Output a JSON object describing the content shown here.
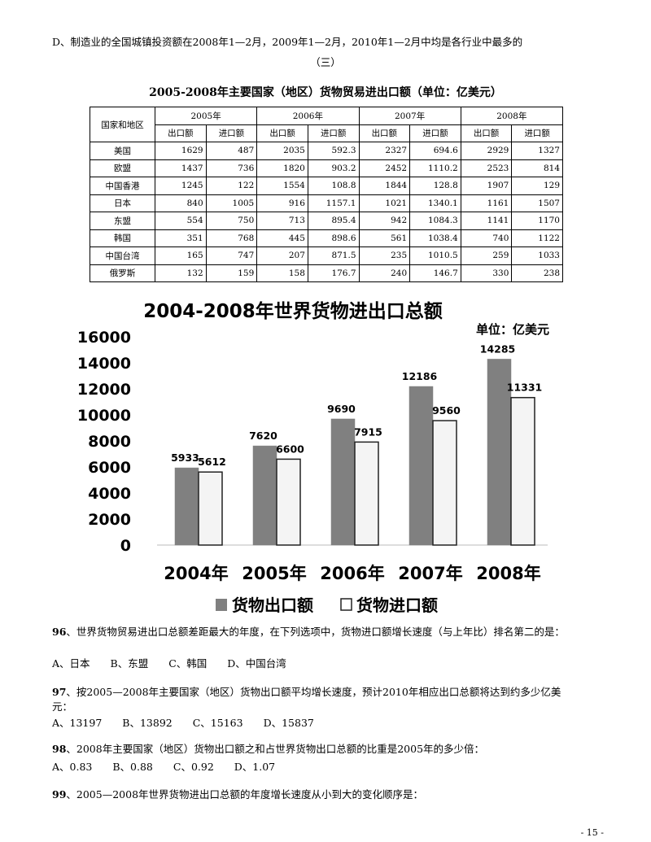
{
  "intro_line": "D、制造业的全国城镇投资额在2008年1—2月，2009年1—2月，2010年1—2月中均是各行业中最多的",
  "section_label": "（三）",
  "table": {
    "title": "2005-2008年主要国家（地区）货物贸易进出口额（单位：亿美元）",
    "corner_header": "国家和地区",
    "years": [
      "2005年",
      "2006年",
      "2007年",
      "2008年"
    ],
    "sub_headers": [
      "出口额",
      "进口额"
    ],
    "rows": [
      {
        "name": "美国",
        "values": [
          "1629",
          "487",
          "2035",
          "592.3",
          "2327",
          "694.6",
          "2929",
          "1327"
        ]
      },
      {
        "name": "欧盟",
        "values": [
          "1437",
          "736",
          "1820",
          "903.2",
          "2452",
          "1110.2",
          "2523",
          "814"
        ]
      },
      {
        "name": "中国香港",
        "values": [
          "1245",
          "122",
          "1554",
          "108.8",
          "1844",
          "128.8",
          "1907",
          "129"
        ]
      },
      {
        "name": "日本",
        "values": [
          "840",
          "1005",
          "916",
          "1157.1",
          "1021",
          "1340.1",
          "1161",
          "1507"
        ]
      },
      {
        "name": "东盟",
        "values": [
          "554",
          "750",
          "713",
          "895.4",
          "942",
          "1084.3",
          "1141",
          "1170"
        ]
      },
      {
        "name": "韩国",
        "values": [
          "351",
          "768",
          "445",
          "898.6",
          "561",
          "1038.4",
          "740",
          "1122"
        ]
      },
      {
        "name": "中国台湾",
        "values": [
          "165",
          "747",
          "207",
          "871.5",
          "235",
          "1010.5",
          "259",
          "1033"
        ]
      },
      {
        "name": "俄罗斯",
        "values": [
          "132",
          "159",
          "158",
          "176.7",
          "240",
          "146.7",
          "330",
          "238"
        ]
      }
    ]
  },
  "chart_data": {
    "type": "bar",
    "title": "2004-2008年世界货物进出口总额",
    "unit_note": "单位：亿美元",
    "categories": [
      "2004年",
      "2005年",
      "2006年",
      "2007年",
      "2008年"
    ],
    "series": [
      {
        "name": "货物出口额",
        "values": [
          5933,
          7620,
          9690,
          12186,
          14285
        ],
        "color": "#808080"
      },
      {
        "name": "货物进口额",
        "values": [
          5612,
          6600,
          7915,
          9560,
          11331
        ],
        "color": "#f4f4f4"
      }
    ],
    "ylim": [
      0,
      16000
    ],
    "yticks": [
      "0",
      "2000",
      "4000",
      "6000",
      "8000",
      "10000",
      "12000",
      "14000",
      "16000"
    ],
    "legend_position": "bottom",
    "grid": false
  },
  "questions": [
    {
      "num": "96",
      "text": "、世界货物贸易进出口总额差距最大的年度，在下列选项中，货物进口额增长速度（与上年比）排名第二的是：",
      "options": "A、日本　　B、东盟　　C、韩国　　D、中国台湾"
    },
    {
      "num": "97",
      "text": "、按2005—2008年主要国家（地区）货物出口额平均增长速度，预计2010年相应出口总额将达到约多少亿美",
      "text2": "元：",
      "options": "A、13197　　B、13892　　C、15163　　D、15837"
    },
    {
      "num": "98",
      "text": "、2008年主要国家（地区）货物出口额之和占世界货物出口总额的比重是2005年的多少倍：",
      "options": "A、0.83　　B、0.88　　C、0.92　　D、1.07"
    },
    {
      "num": "99",
      "text": "、2005—2008年世界货物进出口总额的年度增长速度从小到大的变化顺序是："
    }
  ],
  "page_number": "- 15 -"
}
